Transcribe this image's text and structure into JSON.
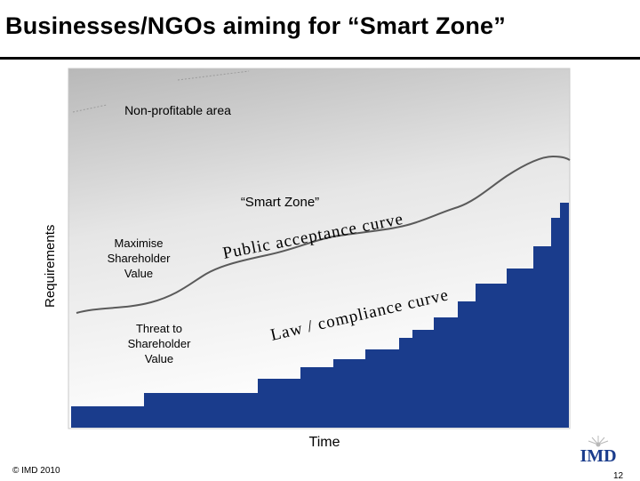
{
  "slide": {
    "title": "Businesses/NGOs aiming for “Smart Zone”",
    "copyright": "© IMD 2010",
    "page_number": "12",
    "logo_text": "IMD"
  },
  "diagram": {
    "y_axis_label": "Requirements",
    "x_axis_label": "Time",
    "region_labels": {
      "non_profitable": "Non-profitable area",
      "smart_zone": "“Smart Zone”",
      "maximise_line1": "Maximise",
      "maximise_line2": "Shareholder",
      "maximise_line3": "Value",
      "threat_line1": "Threat to",
      "threat_line2": "Shareholder",
      "threat_line3": "Value"
    },
    "curve_labels": {
      "public_acceptance": "Public acceptance curve",
      "law_compliance": "Law / compliance curve"
    },
    "colors": {
      "law_steps": "#1a3c8c",
      "background_top": "#b8b8b8",
      "background_bottom": "#ffffff",
      "curve": "#5a5a5a"
    }
  }
}
